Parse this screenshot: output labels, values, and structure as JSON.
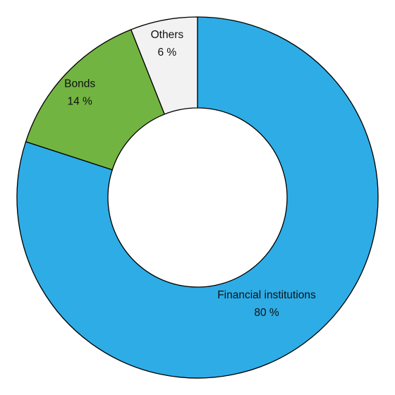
{
  "chart_data": {
    "type": "pie",
    "variant": "donut",
    "title": "",
    "unit": "%",
    "slices": [
      {
        "label": "Financial institutions",
        "value": 80,
        "value_label": "80 %",
        "color": "#2eace6"
      },
      {
        "label": "Bonds",
        "value": 14,
        "value_label": "14 %",
        "color": "#72b441"
      },
      {
        "label": "Others",
        "value": 6,
        "value_label": "6 %",
        "color": "#f2f2f2"
      }
    ],
    "start": "12 o'clock",
    "direction": "clockwise",
    "labels_inside_slices": true,
    "legend": "none"
  }
}
